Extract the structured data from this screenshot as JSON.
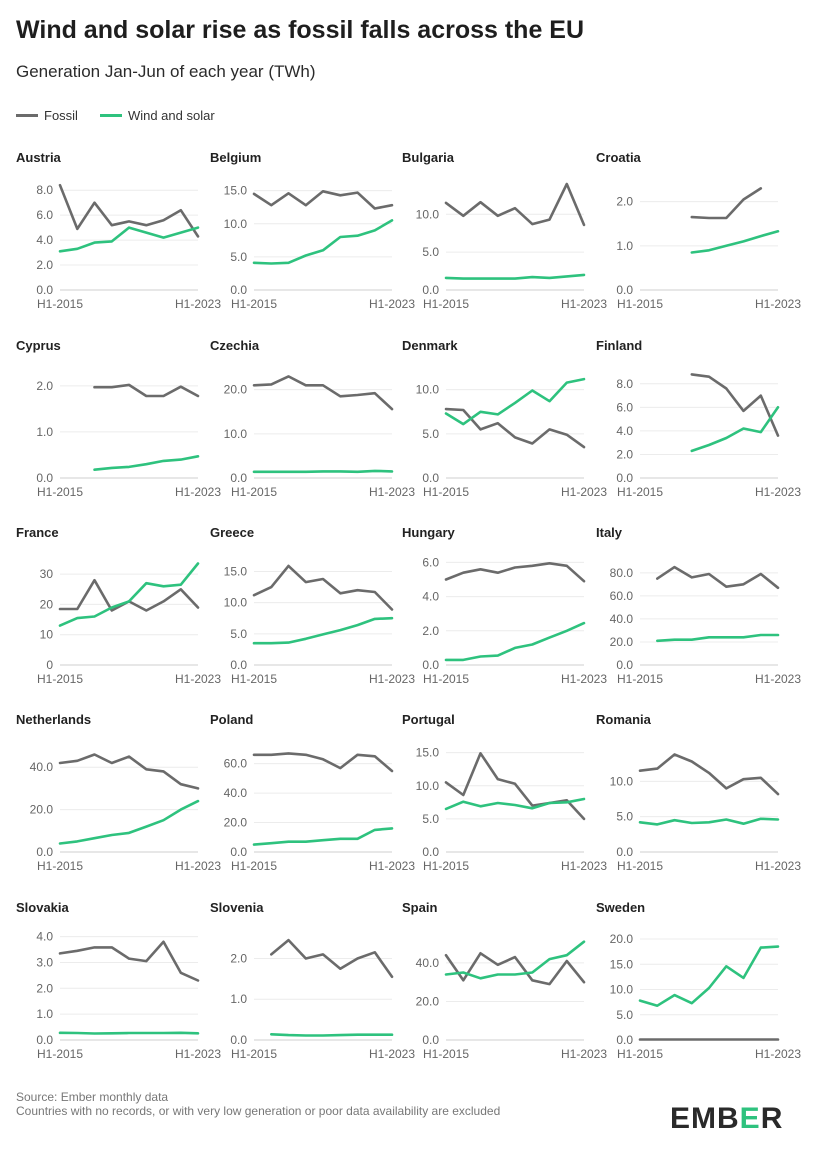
{
  "header": {
    "title": "Wind and solar rise as fossil falls across the EU",
    "subtitle": "Generation Jan-Jun of each year (TWh)"
  },
  "legend": {
    "fossil_label": "Fossil",
    "wind_solar_label": "Wind and solar",
    "fossil_color": "#6b6b6b",
    "wind_solar_color": "#2ec27e"
  },
  "footer": {
    "source": "Source: Ember monthly data",
    "note": "Countries with no records, or with very low generation or poor data availability are excluded"
  },
  "logo": {
    "text_a": "EMB",
    "text_b": "E",
    "text_c": "R"
  },
  "chart_data": [
    {
      "type": "line",
      "title": "Austria",
      "x": [
        2015,
        2016,
        2017,
        2018,
        2019,
        2020,
        2021,
        2022,
        2023
      ],
      "x_tick_labels": [
        "H1-2015",
        "H1-2023"
      ],
      "y_ticks": [
        0,
        2,
        4,
        6,
        8
      ],
      "tick_format": "0.0",
      "ylim": [
        0,
        8.5
      ],
      "series": [
        {
          "name": "Fossil",
          "values": [
            8.4,
            4.9,
            7.0,
            5.2,
            5.5,
            5.2,
            5.6,
            6.4,
            4.3
          ]
        },
        {
          "name": "Wind and solar",
          "values": [
            3.1,
            3.3,
            3.8,
            3.9,
            5.0,
            4.6,
            4.2,
            4.6,
            5.0
          ]
        }
      ]
    },
    {
      "type": "line",
      "title": "Belgium",
      "x": [
        2015,
        2016,
        2017,
        2018,
        2019,
        2020,
        2021,
        2022,
        2023
      ],
      "x_tick_labels": [
        "H1-2015",
        "H1-2023"
      ],
      "y_ticks": [
        0,
        5,
        10,
        15
      ],
      "tick_format": "0.0",
      "ylim": [
        0,
        16
      ],
      "series": [
        {
          "name": "Fossil",
          "values": [
            14.5,
            12.8,
            14.6,
            12.8,
            14.9,
            14.3,
            14.7,
            12.3,
            12.8
          ]
        },
        {
          "name": "Wind and solar",
          "values": [
            4.1,
            4.0,
            4.1,
            5.2,
            6.0,
            8.0,
            8.2,
            9.0,
            10.5
          ]
        }
      ]
    },
    {
      "type": "line",
      "title": "Bulgaria",
      "x": [
        2015,
        2016,
        2017,
        2018,
        2019,
        2020,
        2021,
        2022,
        2023
      ],
      "x_tick_labels": [
        "H1-2015",
        "H1-2023"
      ],
      "y_ticks": [
        0,
        5,
        10
      ],
      "tick_format": "0.0",
      "ylim": [
        0,
        14
      ],
      "series": [
        {
          "name": "Fossil",
          "values": [
            11.5,
            9.8,
            11.6,
            9.8,
            10.8,
            8.7,
            9.3,
            14.0,
            8.6
          ]
        },
        {
          "name": "Wind and solar",
          "values": [
            1.6,
            1.5,
            1.5,
            1.5,
            1.5,
            1.7,
            1.6,
            1.8,
            2.0
          ]
        }
      ]
    },
    {
      "type": "line",
      "title": "Croatia",
      "x": [
        2015,
        2016,
        2017,
        2018,
        2019,
        2020,
        2021,
        2022,
        2023
      ],
      "x_tick_labels": [
        "H1-2015",
        "H1-2023"
      ],
      "y_ticks": [
        0,
        1,
        2
      ],
      "tick_format": "0.0",
      "ylim": [
        0,
        2.4
      ],
      "series": [
        {
          "name": "Fossil",
          "values": [
            null,
            null,
            null,
            1.65,
            1.63,
            1.63,
            2.05,
            2.3,
            null
          ]
        },
        {
          "name": "Wind and solar",
          "values": [
            null,
            null,
            null,
            0.85,
            0.9,
            1.0,
            1.1,
            1.22,
            1.33
          ]
        }
      ]
    },
    {
      "type": "line",
      "title": "Cyprus",
      "x": [
        2015,
        2016,
        2017,
        2018,
        2019,
        2020,
        2021,
        2022,
        2023
      ],
      "x_tick_labels": [
        "H1-2015",
        "H1-2023"
      ],
      "y_ticks": [
        0,
        1,
        2
      ],
      "tick_format": "0.0",
      "ylim": [
        0,
        2.3
      ],
      "series": [
        {
          "name": "Fossil",
          "values": [
            null,
            null,
            1.97,
            1.97,
            2.02,
            1.78,
            1.78,
            1.98,
            1.78
          ]
        },
        {
          "name": "Wind and solar",
          "values": [
            null,
            null,
            0.18,
            0.22,
            0.24,
            0.3,
            0.37,
            0.4,
            0.47
          ]
        }
      ]
    },
    {
      "type": "line",
      "title": "Czechia",
      "x": [
        2015,
        2016,
        2017,
        2018,
        2019,
        2020,
        2021,
        2022,
        2023
      ],
      "x_tick_labels": [
        "H1-2015",
        "H1-2023"
      ],
      "y_ticks": [
        0,
        10,
        20
      ],
      "tick_format": "0.0",
      "ylim": [
        0,
        24
      ],
      "series": [
        {
          "name": "Fossil",
          "values": [
            21.0,
            21.2,
            23.0,
            21.0,
            21.0,
            18.5,
            18.8,
            19.2,
            15.6
          ]
        },
        {
          "name": "Wind and solar",
          "values": [
            1.4,
            1.4,
            1.4,
            1.4,
            1.5,
            1.5,
            1.4,
            1.6,
            1.5
          ]
        }
      ]
    },
    {
      "type": "line",
      "title": "Denmark",
      "x": [
        2015,
        2016,
        2017,
        2018,
        2019,
        2020,
        2021,
        2022,
        2023
      ],
      "x_tick_labels": [
        "H1-2015",
        "H1-2023"
      ],
      "y_ticks": [
        0,
        5,
        10
      ],
      "tick_format": "0.0",
      "ylim": [
        0,
        12
      ],
      "series": [
        {
          "name": "Fossil",
          "values": [
            7.8,
            7.7,
            5.5,
            6.2,
            4.6,
            3.9,
            5.5,
            4.9,
            3.5
          ]
        },
        {
          "name": "Wind and solar",
          "values": [
            7.3,
            6.1,
            7.5,
            7.2,
            8.5,
            9.9,
            8.7,
            10.8,
            11.2
          ]
        }
      ]
    },
    {
      "type": "line",
      "title": "Finland",
      "x": [
        2015,
        2016,
        2017,
        2018,
        2019,
        2020,
        2021,
        2022,
        2023
      ],
      "x_tick_labels": [
        "H1-2015",
        "H1-2023"
      ],
      "y_ticks": [
        0,
        2,
        4,
        6,
        8
      ],
      "tick_format": "0.0",
      "ylim": [
        0,
        9
      ],
      "series": [
        {
          "name": "Fossil",
          "values": [
            null,
            null,
            null,
            8.8,
            8.6,
            7.6,
            5.7,
            7.0,
            3.6
          ]
        },
        {
          "name": "Wind and solar",
          "values": [
            null,
            null,
            null,
            2.3,
            2.8,
            3.4,
            4.2,
            3.9,
            6.0
          ]
        }
      ]
    },
    {
      "type": "line",
      "title": "France",
      "x": [
        2015,
        2016,
        2017,
        2018,
        2019,
        2020,
        2021,
        2022,
        2023
      ],
      "x_tick_labels": [
        "H1-2015",
        "H1-2023"
      ],
      "y_ticks": [
        0,
        10,
        20,
        30
      ],
      "tick_format": "0",
      "ylim": [
        0,
        35
      ],
      "series": [
        {
          "name": "Fossil",
          "values": [
            18.5,
            18.5,
            28.0,
            18.0,
            21.0,
            18.0,
            21.0,
            25.0,
            19.0
          ]
        },
        {
          "name": "Wind and solar",
          "values": [
            13.0,
            15.5,
            16.0,
            19.0,
            21.0,
            27.0,
            26.0,
            26.5,
            33.5
          ]
        }
      ]
    },
    {
      "type": "line",
      "title": "Greece",
      "x": [
        2015,
        2016,
        2017,
        2018,
        2019,
        2020,
        2021,
        2022,
        2023
      ],
      "x_tick_labels": [
        "H1-2015",
        "H1-2023"
      ],
      "y_ticks": [
        0,
        5,
        10,
        15
      ],
      "tick_format": "0.0",
      "ylim": [
        0,
        17
      ],
      "series": [
        {
          "name": "Fossil",
          "values": [
            11.2,
            12.5,
            15.9,
            13.3,
            13.8,
            11.5,
            12.0,
            11.7,
            8.9
          ]
        },
        {
          "name": "Wind and solar",
          "values": [
            3.5,
            3.5,
            3.6,
            4.2,
            4.9,
            5.6,
            6.4,
            7.4,
            7.5
          ]
        }
      ]
    },
    {
      "type": "line",
      "title": "Hungary",
      "x": [
        2015,
        2016,
        2017,
        2018,
        2019,
        2020,
        2021,
        2022,
        2023
      ],
      "x_tick_labels": [
        "H1-2015",
        "H1-2023"
      ],
      "y_ticks": [
        0,
        2,
        4,
        6
      ],
      "tick_format": "0.0",
      "ylim": [
        0,
        6.2
      ],
      "series": [
        {
          "name": "Fossil",
          "values": [
            5.0,
            5.4,
            5.6,
            5.4,
            5.7,
            5.8,
            5.95,
            5.8,
            4.9
          ]
        },
        {
          "name": "Wind and solar",
          "values": [
            0.3,
            0.3,
            0.5,
            0.55,
            1.0,
            1.2,
            1.6,
            2.0,
            2.45
          ]
        }
      ]
    },
    {
      "type": "line",
      "title": "Italy",
      "x": [
        2015,
        2016,
        2017,
        2018,
        2019,
        2020,
        2021,
        2022,
        2023
      ],
      "x_tick_labels": [
        "H1-2015",
        "H1-2023"
      ],
      "y_ticks": [
        0,
        20,
        40,
        60,
        80
      ],
      "tick_format": "0.0",
      "ylim": [
        0,
        92
      ],
      "series": [
        {
          "name": "Fossil",
          "values": [
            null,
            75,
            85,
            76,
            79,
            68,
            70,
            79,
            67
          ]
        },
        {
          "name": "Wind and solar",
          "values": [
            null,
            21,
            22,
            22,
            24,
            24,
            24,
            26,
            26
          ]
        }
      ]
    },
    {
      "type": "line",
      "title": "Netherlands",
      "x": [
        2015,
        2016,
        2017,
        2018,
        2019,
        2020,
        2021,
        2022,
        2023
      ],
      "x_tick_labels": [
        "H1-2015",
        "H1-2023"
      ],
      "y_ticks": [
        0,
        20,
        40
      ],
      "tick_format": "0.0",
      "ylim": [
        0,
        50
      ],
      "series": [
        {
          "name": "Fossil",
          "values": [
            42,
            43,
            46,
            42,
            45,
            39,
            38,
            32,
            30
          ]
        },
        {
          "name": "Wind and solar",
          "values": [
            4,
            5,
            6.5,
            8,
            9,
            12,
            15,
            20,
            24
          ]
        }
      ]
    },
    {
      "type": "line",
      "title": "Poland",
      "x": [
        2015,
        2016,
        2017,
        2018,
        2019,
        2020,
        2021,
        2022,
        2023
      ],
      "x_tick_labels": [
        "H1-2015",
        "H1-2023"
      ],
      "y_ticks": [
        0,
        20,
        40,
        60
      ],
      "tick_format": "0.0",
      "ylim": [
        0,
        72
      ],
      "series": [
        {
          "name": "Fossil",
          "values": [
            66,
            66,
            67,
            66,
            63,
            57,
            66,
            65,
            55
          ]
        },
        {
          "name": "Wind and solar",
          "values": [
            5,
            6,
            7,
            7,
            8,
            9,
            9,
            15,
            16
          ]
        }
      ]
    },
    {
      "type": "line",
      "title": "Portugal",
      "x": [
        2015,
        2016,
        2017,
        2018,
        2019,
        2020,
        2021,
        2022,
        2023
      ],
      "x_tick_labels": [
        "H1-2015",
        "H1-2023"
      ],
      "y_ticks": [
        0,
        5,
        10,
        15
      ],
      "tick_format": "0.0",
      "ylim": [
        0,
        16
      ],
      "series": [
        {
          "name": "Fossil",
          "values": [
            10.5,
            8.6,
            14.9,
            11.0,
            10.3,
            7.0,
            7.4,
            7.8,
            5.0
          ]
        },
        {
          "name": "Wind and solar",
          "values": [
            6.5,
            7.6,
            6.9,
            7.4,
            7.1,
            6.6,
            7.4,
            7.5,
            8.0
          ]
        }
      ]
    },
    {
      "type": "line",
      "title": "Romania",
      "x": [
        2015,
        2016,
        2017,
        2018,
        2019,
        2020,
        2021,
        2022,
        2023
      ],
      "x_tick_labels": [
        "H1-2015",
        "H1-2023"
      ],
      "y_ticks": [
        0,
        5,
        10
      ],
      "tick_format": "0.0",
      "ylim": [
        0,
        15
      ],
      "series": [
        {
          "name": "Fossil",
          "values": [
            11.5,
            11.8,
            13.8,
            12.8,
            11.2,
            9.0,
            10.3,
            10.5,
            8.2
          ]
        },
        {
          "name": "Wind and solar",
          "values": [
            4.2,
            3.9,
            4.5,
            4.1,
            4.2,
            4.6,
            4.0,
            4.7,
            4.6
          ]
        }
      ]
    },
    {
      "type": "line",
      "title": "Slovakia",
      "x": [
        2015,
        2016,
        2017,
        2018,
        2019,
        2020,
        2021,
        2022,
        2023
      ],
      "x_tick_labels": [
        "H1-2015",
        "H1-2023"
      ],
      "y_ticks": [
        0,
        1,
        2,
        3,
        4
      ],
      "tick_format": "0.0",
      "ylim": [
        0,
        4.1
      ],
      "series": [
        {
          "name": "Fossil",
          "values": [
            3.35,
            3.45,
            3.58,
            3.58,
            3.15,
            3.05,
            3.8,
            2.6,
            2.3
          ]
        },
        {
          "name": "Wind and solar",
          "values": [
            0.28,
            0.27,
            0.25,
            0.26,
            0.27,
            0.27,
            0.27,
            0.28,
            0.26
          ]
        }
      ]
    },
    {
      "type": "line",
      "title": "Slovenia",
      "x": [
        2015,
        2016,
        2017,
        2018,
        2019,
        2020,
        2021,
        2022,
        2023
      ],
      "x_tick_labels": [
        "H1-2015",
        "H1-2023"
      ],
      "y_ticks": [
        0,
        1,
        2
      ],
      "tick_format": "0.0",
      "ylim": [
        0,
        2.6
      ],
      "series": [
        {
          "name": "Fossil",
          "values": [
            null,
            2.1,
            2.45,
            2.0,
            2.1,
            1.75,
            2.0,
            2.15,
            1.55
          ]
        },
        {
          "name": "Wind and solar",
          "values": [
            null,
            0.14,
            0.12,
            0.11,
            0.11,
            0.12,
            0.13,
            0.13,
            0.13
          ]
        }
      ]
    },
    {
      "type": "line",
      "title": "Spain",
      "x": [
        2015,
        2016,
        2017,
        2018,
        2019,
        2020,
        2021,
        2022,
        2023
      ],
      "x_tick_labels": [
        "H1-2015",
        "H1-2023"
      ],
      "y_ticks": [
        0,
        20,
        40
      ],
      "tick_format": "0.0",
      "ylim": [
        0,
        55
      ],
      "series": [
        {
          "name": "Fossil",
          "values": [
            44,
            31,
            45,
            39,
            43,
            31,
            29,
            41,
            30
          ]
        },
        {
          "name": "Wind and solar",
          "values": [
            34,
            35,
            32,
            34,
            34,
            35,
            42,
            44,
            51
          ]
        }
      ]
    },
    {
      "type": "line",
      "title": "Sweden",
      "x": [
        2015,
        2016,
        2017,
        2018,
        2019,
        2020,
        2021,
        2022,
        2023
      ],
      "x_tick_labels": [
        "H1-2015",
        "H1-2023"
      ],
      "y_ticks": [
        0,
        5,
        10,
        15,
        20
      ],
      "tick_format": "0.0",
      "ylim": [
        0,
        21
      ],
      "series": [
        {
          "name": "Fossil",
          "values": [
            0.1,
            0.1,
            0.1,
            0.1,
            0.1,
            0.1,
            0.1,
            0.1,
            0.1
          ]
        },
        {
          "name": "Wind and solar",
          "values": [
            7.8,
            6.8,
            8.9,
            7.3,
            10.3,
            14.6,
            12.3,
            18.3,
            18.5
          ]
        }
      ]
    }
  ]
}
